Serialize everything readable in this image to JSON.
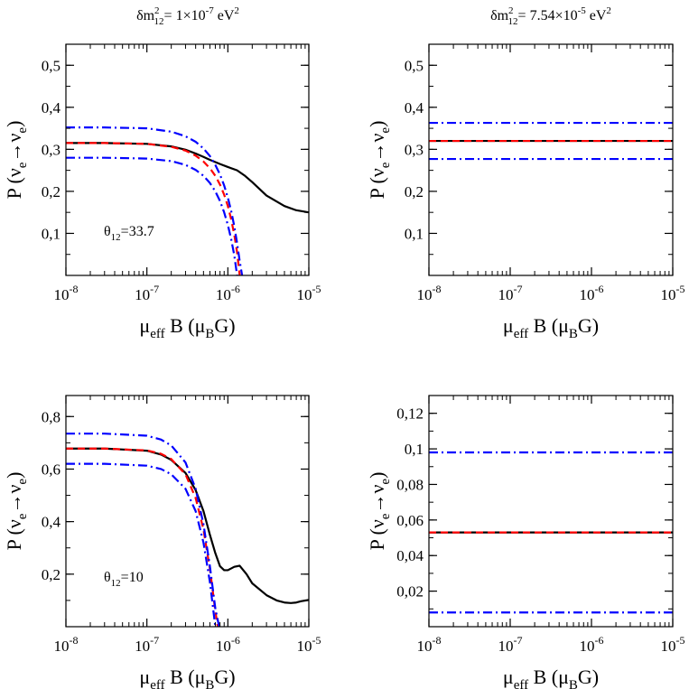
{
  "chart_data": [
    {
      "type": "line",
      "title": {
        "main": "δm",
        "sup": "2",
        "sub": "12",
        "rest": "= 1×10",
        "exp": "-7",
        "unit": " eV",
        "unit_sup": "2"
      },
      "xlabel": {
        "mu": "μ",
        "sub": "eff",
        "mid": " B (μ",
        "sub2": "B",
        "end": "G)"
      },
      "ylabel": {
        "p": "P (ν",
        "sub1": "e",
        "arrow": "→ν",
        "sub2": "e",
        "end": ")"
      },
      "xscale": "log",
      "xlim": [
        1e-08,
        1e-05
      ],
      "ylim": [
        0,
        0.55
      ],
      "x_ticks": [
        {
          "base": "10",
          "exp": "-8"
        },
        {
          "base": "10",
          "exp": "-7"
        },
        {
          "base": "10",
          "exp": "-6"
        },
        {
          "base": "10",
          "exp": "-5"
        }
      ],
      "y_ticks": [
        {
          "value": 0.1,
          "label": "0,1"
        },
        {
          "value": 0.2,
          "label": "0,2"
        },
        {
          "value": 0.3,
          "label": "0,3"
        },
        {
          "value": 0.4,
          "label": "0,4"
        },
        {
          "value": 0.5,
          "label": "0,5"
        }
      ],
      "annotation": {
        "theta": "θ",
        "sub": "12",
        "value": "=33.7"
      },
      "series": [
        {
          "name": "black-solid",
          "color": "#000000",
          "style": "solid",
          "x": [
            1e-08,
            3e-08,
            1e-07,
            2e-07,
            3e-07,
            4e-07,
            5e-07,
            6e-07,
            8e-07,
            1e-06,
            1.3e-06,
            1.6e-06,
            2e-06,
            3e-06,
            5e-06,
            7e-06,
            1e-05
          ],
          "y": [
            0.315,
            0.315,
            0.313,
            0.307,
            0.299,
            0.29,
            0.282,
            0.275,
            0.265,
            0.258,
            0.25,
            0.238,
            0.222,
            0.19,
            0.165,
            0.155,
            0.15
          ]
        },
        {
          "name": "red-dashed",
          "color": "#ff0000",
          "style": "dashed",
          "x": [
            1e-08,
            3e-08,
            1e-07,
            2e-07,
            3e-07,
            4e-07,
            5e-07,
            6e-07,
            7e-07,
            8e-07,
            9e-07,
            1e-06,
            1.1e-06,
            1.2e-06,
            1.3e-06,
            1.4e-06
          ],
          "y": [
            0.315,
            0.315,
            0.313,
            0.306,
            0.297,
            0.285,
            0.271,
            0.255,
            0.237,
            0.216,
            0.192,
            0.165,
            0.133,
            0.097,
            0.055,
            0.0
          ]
        },
        {
          "name": "blue-dashdot-upper",
          "color": "#0000ff",
          "style": "dashdot",
          "x": [
            1e-08,
            3e-08,
            1e-07,
            2e-07,
            3e-07,
            4e-07,
            5e-07,
            6e-07,
            7e-07,
            8e-07,
            9e-07,
            1e-06,
            1.1e-06,
            1.2e-06,
            1.3e-06,
            1.4e-06,
            1.5e-06
          ],
          "y": [
            0.352,
            0.352,
            0.35,
            0.342,
            0.331,
            0.318,
            0.302,
            0.284,
            0.263,
            0.24,
            0.214,
            0.185,
            0.153,
            0.117,
            0.077,
            0.034,
            0.0
          ]
        },
        {
          "name": "blue-dashdot-lower",
          "color": "#0000ff",
          "style": "dashdot",
          "x": [
            1e-08,
            3e-08,
            1e-07,
            2e-07,
            3e-07,
            4e-07,
            5e-07,
            6e-07,
            7e-07,
            8e-07,
            9e-07,
            1e-06,
            1.1e-06,
            1.2e-06,
            1.3e-06
          ],
          "y": [
            0.28,
            0.28,
            0.278,
            0.272,
            0.263,
            0.251,
            0.237,
            0.22,
            0.2,
            0.177,
            0.15,
            0.12,
            0.086,
            0.048,
            0.0
          ]
        }
      ]
    },
    {
      "type": "line",
      "title": {
        "main": "δm",
        "sup": "2",
        "sub": "12",
        "rest": "= 7.54×10",
        "exp": "-5",
        "unit": " eV",
        "unit_sup": "2"
      },
      "xlabel": {
        "mu": "μ",
        "sub": "eff",
        "mid": " B (μ",
        "sub2": "B",
        "end": "G)"
      },
      "ylabel": {
        "p": "P (ν",
        "sub1": "e",
        "arrow": "→ν",
        "sub2": "e",
        "end": ")"
      },
      "xscale": "log",
      "xlim": [
        1e-08,
        1e-05
      ],
      "ylim": [
        0,
        0.55
      ],
      "x_ticks": [
        {
          "base": "10",
          "exp": "-8"
        },
        {
          "base": "10",
          "exp": "-7"
        },
        {
          "base": "10",
          "exp": "-6"
        },
        {
          "base": "10",
          "exp": "-5"
        }
      ],
      "y_ticks": [
        {
          "value": 0.1,
          "label": "0,1"
        },
        {
          "value": 0.2,
          "label": "0,2"
        },
        {
          "value": 0.3,
          "label": "0,3"
        },
        {
          "value": 0.4,
          "label": "0,4"
        },
        {
          "value": 0.5,
          "label": "0,5"
        }
      ],
      "series": [
        {
          "name": "black-solid",
          "color": "#000000",
          "style": "solid",
          "x": [
            1e-08,
            1e-05
          ],
          "y": [
            0.32,
            0.32
          ]
        },
        {
          "name": "red-dashed",
          "color": "#ff0000",
          "style": "dashed",
          "x": [
            1e-08,
            1e-05
          ],
          "y": [
            0.32,
            0.32
          ]
        },
        {
          "name": "blue-dashdot-upper",
          "color": "#0000ff",
          "style": "dashdot",
          "x": [
            1e-08,
            1e-05
          ],
          "y": [
            0.363,
            0.363
          ]
        },
        {
          "name": "blue-dashdot-lower",
          "color": "#0000ff",
          "style": "dashdot",
          "x": [
            1e-08,
            1e-05
          ],
          "y": [
            0.277,
            0.277
          ]
        }
      ]
    },
    {
      "type": "line",
      "xlabel": {
        "mu": "μ",
        "sub": "eff",
        "mid": " B (μ",
        "sub2": "B",
        "end": "G)"
      },
      "ylabel": {
        "p": "P (ν",
        "sub1": "e",
        "arrow": "→ν",
        "sub2": "e",
        "end": ")"
      },
      "xscale": "log",
      "xlim": [
        1e-08,
        1e-05
      ],
      "ylim": [
        0,
        0.88
      ],
      "x_ticks": [
        {
          "base": "10",
          "exp": "-8"
        },
        {
          "base": "10",
          "exp": "-7"
        },
        {
          "base": "10",
          "exp": "-6"
        },
        {
          "base": "10",
          "exp": "-5"
        }
      ],
      "y_ticks": [
        {
          "value": 0.2,
          "label": "0,2"
        },
        {
          "value": 0.4,
          "label": "0,4"
        },
        {
          "value": 0.6,
          "label": "0,6"
        },
        {
          "value": 0.8,
          "label": "0,8"
        }
      ],
      "annotation": {
        "theta": "θ",
        "sub": "12",
        "value": "=10"
      },
      "series": [
        {
          "name": "black-solid",
          "color": "#000000",
          "style": "solid",
          "x": [
            1e-08,
            3e-08,
            1e-07,
            1.5e-07,
            2e-07,
            3e-07,
            4e-07,
            5e-07,
            6e-07,
            7e-07,
            8e-07,
            9e-07,
            1e-06,
            1.2e-06,
            1.4e-06,
            1.7e-06,
            2e-06,
            3e-06,
            4e-06,
            5e-06,
            6e-06,
            7e-06,
            8e-06,
            1e-05
          ],
          "y": [
            0.678,
            0.678,
            0.67,
            0.655,
            0.635,
            0.585,
            0.52,
            0.44,
            0.35,
            0.28,
            0.23,
            0.215,
            0.215,
            0.228,
            0.232,
            0.2,
            0.165,
            0.12,
            0.1,
            0.092,
            0.09,
            0.092,
            0.097,
            0.102
          ]
        },
        {
          "name": "red-dashed",
          "color": "#ff0000",
          "style": "dashed",
          "x": [
            1e-08,
            3e-08,
            1e-07,
            1.5e-07,
            2e-07,
            3e-07,
            4e-07,
            5e-07,
            6e-07,
            7e-07,
            7.5e-07
          ],
          "y": [
            0.678,
            0.678,
            0.671,
            0.658,
            0.638,
            0.58,
            0.49,
            0.37,
            0.22,
            0.06,
            0.0
          ]
        },
        {
          "name": "blue-dashdot-upper",
          "color": "#0000ff",
          "style": "dashdot",
          "x": [
            1e-08,
            3e-08,
            1e-07,
            1.5e-07,
            2e-07,
            3e-07,
            4e-07,
            5e-07,
            6e-07,
            7e-07,
            7.8e-07
          ],
          "y": [
            0.735,
            0.735,
            0.727,
            0.712,
            0.69,
            0.625,
            0.525,
            0.39,
            0.23,
            0.07,
            0.0
          ]
        },
        {
          "name": "blue-dashdot-lower",
          "color": "#0000ff",
          "style": "dashdot",
          "x": [
            1e-08,
            3e-08,
            1e-07,
            1.5e-07,
            2e-07,
            3e-07,
            4e-07,
            5e-07,
            6e-07,
            7e-07
          ],
          "y": [
            0.62,
            0.62,
            0.613,
            0.6,
            0.58,
            0.525,
            0.44,
            0.32,
            0.17,
            0.0
          ]
        }
      ]
    },
    {
      "type": "line",
      "xlabel": {
        "mu": "μ",
        "sub": "eff",
        "mid": " B (μ",
        "sub2": "B",
        "end": "G)"
      },
      "ylabel": {
        "p": "P (ν",
        "sub1": "e",
        "arrow": "→ν",
        "sub2": "e",
        "end": ")"
      },
      "xscale": "log",
      "xlim": [
        1e-08,
        1e-05
      ],
      "ylim": [
        0,
        0.13
      ],
      "x_ticks": [
        {
          "base": "10",
          "exp": "-8"
        },
        {
          "base": "10",
          "exp": "-7"
        },
        {
          "base": "10",
          "exp": "-6"
        },
        {
          "base": "10",
          "exp": "-5"
        }
      ],
      "y_ticks": [
        {
          "value": 0.02,
          "label": "0,02"
        },
        {
          "value": 0.04,
          "label": "0,04"
        },
        {
          "value": 0.06,
          "label": "0,06"
        },
        {
          "value": 0.08,
          "label": "0,08"
        },
        {
          "value": 0.1,
          "label": "0,1"
        },
        {
          "value": 0.12,
          "label": "0,12"
        }
      ],
      "series": [
        {
          "name": "black-solid",
          "color": "#000000",
          "style": "solid",
          "x": [
            1e-08,
            1e-05
          ],
          "y": [
            0.053,
            0.053
          ]
        },
        {
          "name": "red-dashed",
          "color": "#ff0000",
          "style": "dashed",
          "x": [
            1e-08,
            1e-05
          ],
          "y": [
            0.053,
            0.053
          ]
        },
        {
          "name": "blue-dashdot-upper",
          "color": "#0000ff",
          "style": "dashdot",
          "x": [
            1e-08,
            1e-05
          ],
          "y": [
            0.098,
            0.098
          ]
        },
        {
          "name": "blue-dashdot-lower",
          "color": "#0000ff",
          "style": "dashdot",
          "x": [
            1e-08,
            1e-05
          ],
          "y": [
            0.008,
            0.008
          ]
        }
      ]
    }
  ]
}
